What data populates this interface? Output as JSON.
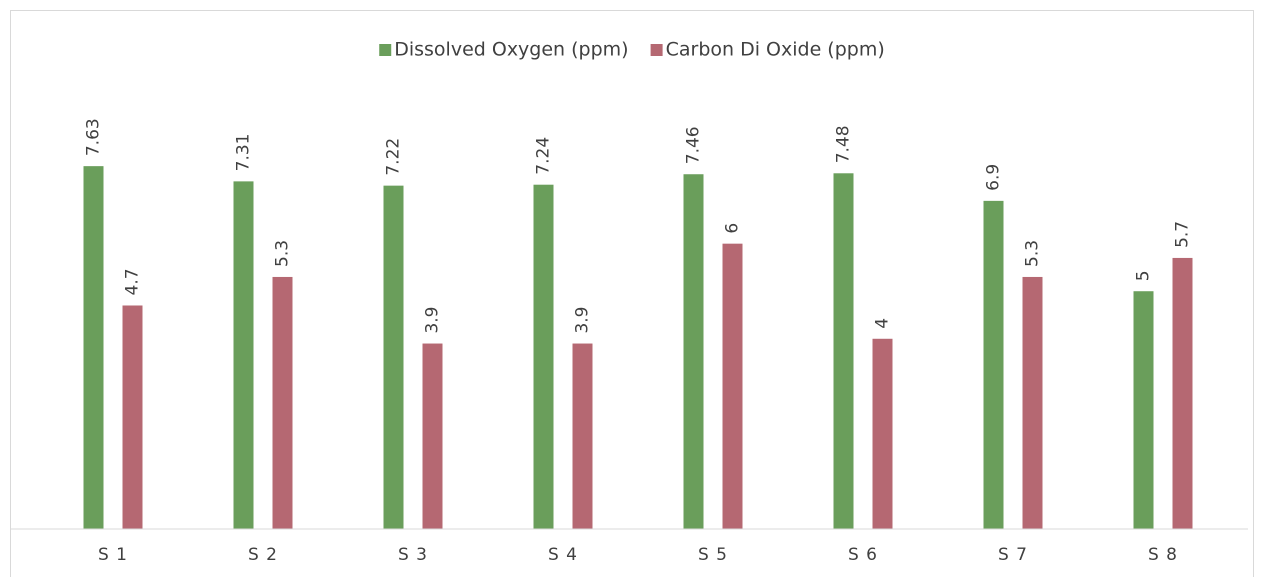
{
  "chart_data": {
    "type": "bar",
    "categories": [
      "S 1",
      "S 2",
      "S 3",
      "S 4",
      "S 5",
      "S 6",
      "S 7",
      "S 8"
    ],
    "series": [
      {
        "name": "Dissolved Oxygen (ppm)",
        "color": "#6a9e5b",
        "values": [
          7.63,
          7.31,
          7.22,
          7.24,
          7.46,
          7.48,
          6.9,
          5
        ]
      },
      {
        "name": "Carbon Di Oxide (ppm)",
        "color": "#b56872",
        "values": [
          4.7,
          5.3,
          3.9,
          3.9,
          6,
          4,
          5.3,
          5.7
        ]
      }
    ],
    "ylim": [
      0,
      9
    ],
    "legend": "top",
    "data_labels": true
  }
}
